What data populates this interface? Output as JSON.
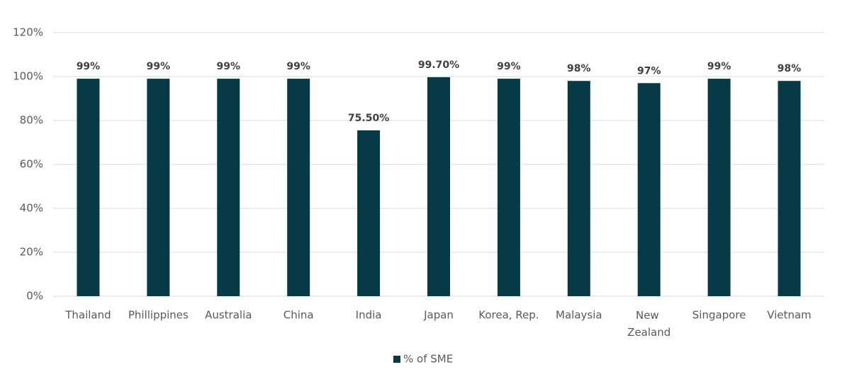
{
  "chart_data": {
    "type": "bar",
    "categories": [
      "Thailand",
      "Phillippines",
      "Australia",
      "China",
      "India",
      "Japan",
      "Korea, Rep.",
      "Malaysia",
      "New Zealand",
      "Singapore",
      "Vietnam"
    ],
    "series": [
      {
        "name": "% of SME",
        "color": "#063a46",
        "values": [
          99,
          99,
          99,
          99,
          75.5,
          99.7,
          99,
          98,
          97,
          99,
          98
        ],
        "value_labels": [
          "99%",
          "99%",
          "99%",
          "99%",
          "75.50%",
          "99.70%",
          "99%",
          "98%",
          "97%",
          "99%",
          "98%"
        ]
      }
    ],
    "ylim": [
      0,
      120
    ],
    "yticks": [
      {
        "value": 0,
        "label": "0%"
      },
      {
        "value": 20,
        "label": "20%"
      },
      {
        "value": 40,
        "label": "40%"
      },
      {
        "value": 60,
        "label": "60%"
      },
      {
        "value": 80,
        "label": "80%"
      },
      {
        "value": 100,
        "label": "100%"
      },
      {
        "value": 120,
        "label": "120%"
      }
    ],
    "grid": true,
    "legend": "bottom"
  }
}
